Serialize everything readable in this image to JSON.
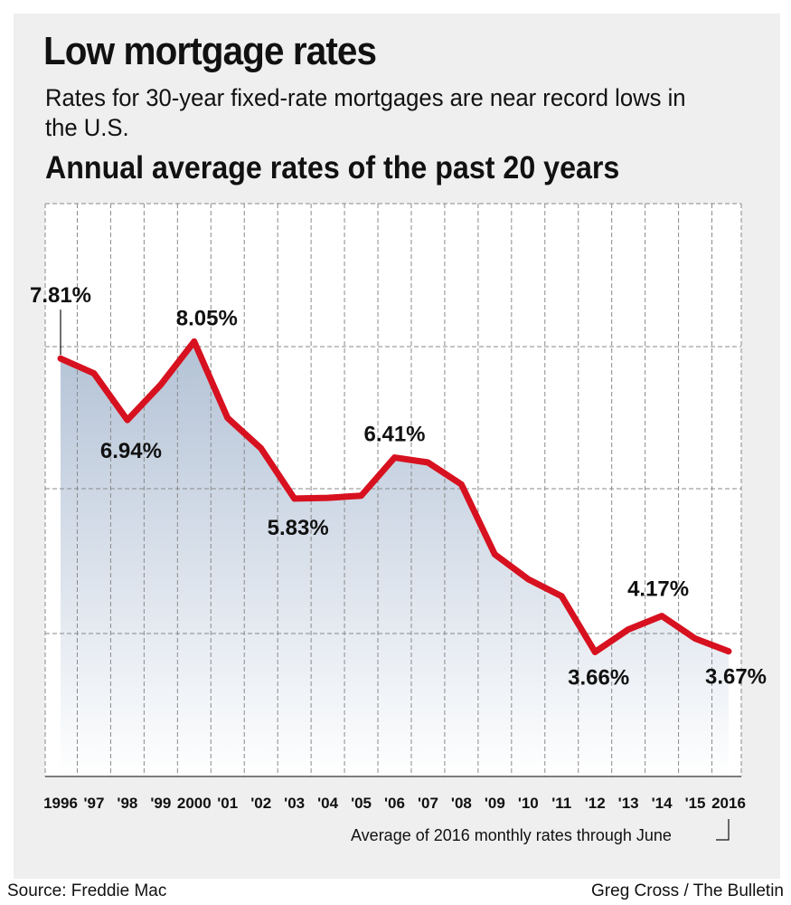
{
  "header": {
    "title": "Low mortgage rates",
    "subtitle": "Rates for 30-year fixed-rate mortgages are near record lows in the U.S.",
    "chart_heading": "Annual average rates of the past 20 years"
  },
  "footer": {
    "footnote": "Average of 2016 monthly rates through June",
    "source": "Source: Freddie Mac",
    "credit": "Greg Cross / The Bulletin"
  },
  "colors": {
    "line": "#d7111f",
    "area_top": "#b3c2d6",
    "area_bottom": "#ffffff",
    "grid": "#8a8a8a",
    "panel": "#efefef"
  },
  "chart_data": {
    "type": "area",
    "x": [
      "1996",
      "'97",
      "'98",
      "'99",
      "2000",
      "'01",
      "'02",
      "'03",
      "'04",
      "'05",
      "'06",
      "'07",
      "'08",
      "'09",
      "'10",
      "'11",
      "'12",
      "'13",
      "'14",
      "'15",
      "2016"
    ],
    "values": [
      7.81,
      7.6,
      6.94,
      7.44,
      8.05,
      6.97,
      6.54,
      5.83,
      5.84,
      5.87,
      6.41,
      6.34,
      6.03,
      5.04,
      4.69,
      4.45,
      3.66,
      3.98,
      4.17,
      3.85,
      3.67
    ],
    "labels": [
      {
        "index": 0,
        "text": "7.81%"
      },
      {
        "index": 2,
        "text": "6.94%"
      },
      {
        "index": 4,
        "text": "8.05%"
      },
      {
        "index": 7,
        "text": "5.83%"
      },
      {
        "index": 10,
        "text": "6.41%"
      },
      {
        "index": 16,
        "text": "3.66%"
      },
      {
        "index": 18,
        "text": "4.17%"
      },
      {
        "index": 20,
        "text": "3.67%"
      }
    ],
    "ylim": [
      1.9,
      10.0
    ],
    "grid": true,
    "title": "Annual average rates of the past 20 years",
    "xlabel": "",
    "ylabel": ""
  }
}
